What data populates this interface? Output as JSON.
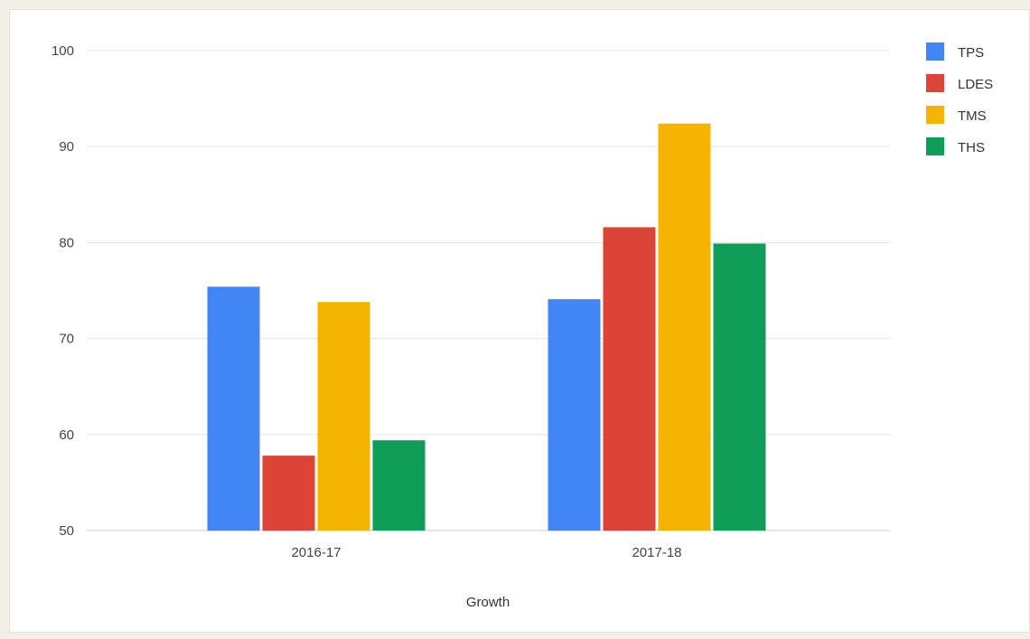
{
  "chart_data": {
    "type": "bar",
    "title": "",
    "xlabel": "Growth",
    "ylabel": "",
    "categories": [
      "2016-17",
      "2017-18"
    ],
    "series": [
      {
        "name": "TPS",
        "color": "#4285f4",
        "values": [
          75.4,
          74.1
        ]
      },
      {
        "name": "LDES",
        "color": "#db4437",
        "values": [
          57.8,
          81.6
        ]
      },
      {
        "name": "TMS",
        "color": "#f4b400",
        "values": [
          73.8,
          92.4
        ]
      },
      {
        "name": "THS",
        "color": "#0f9d58",
        "values": [
          59.4,
          79.9
        ]
      }
    ],
    "ylim": [
      50,
      100
    ],
    "yticks": [
      "50",
      "60",
      "70",
      "80",
      "90",
      "100"
    ],
    "grid": true,
    "legend_position": "right"
  }
}
